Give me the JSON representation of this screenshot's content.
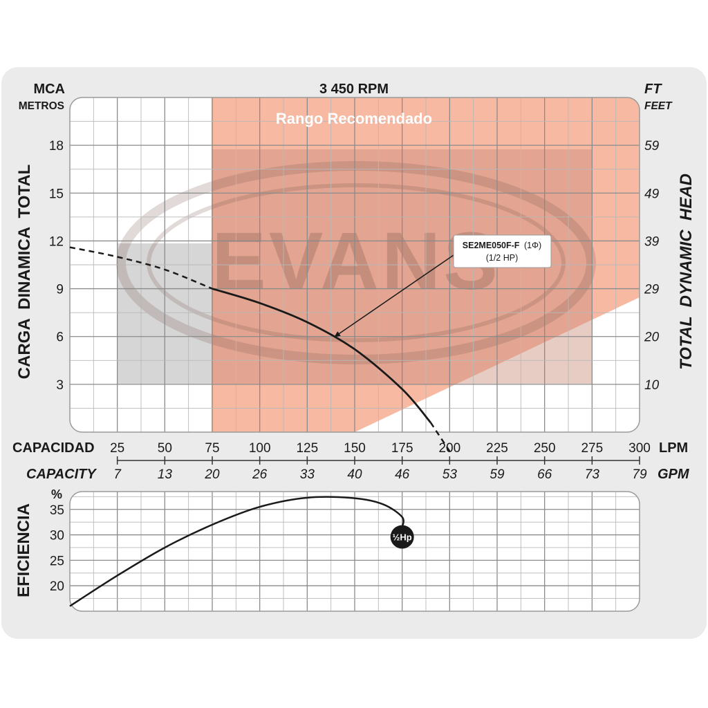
{
  "chart_data": [
    {
      "type": "line",
      "title": "3 450 RPM",
      "y_left_unit": "MCA",
      "y_left_unit_sub": "METROS",
      "y_right_unit": "FT",
      "y_right_unit_sub": "FEET",
      "ylabel_left": "CARGA  DINAMICA  TOTAL",
      "ylabel_right": "TOTAL  DYNAMIC  HEAD",
      "y_left_ticks": [
        "3",
        "6",
        "9",
        "12",
        "15",
        "18"
      ],
      "y_right_ticks": [
        "10",
        "20",
        "29",
        "39",
        "49",
        "59"
      ],
      "ylim": [
        0,
        21
      ],
      "xlim_lpm": [
        0,
        300
      ],
      "x_lpm_ticks": [
        "25",
        "50",
        "75",
        "100",
        "125",
        "150",
        "175",
        "200",
        "225",
        "250",
        "275",
        "300"
      ],
      "x_gpm_ticks": [
        "7",
        "13",
        "20",
        "26",
        "33",
        "40",
        "46",
        "53",
        "59",
        "66",
        "73",
        "79"
      ],
      "xlabel_es": "CAPACIDAD",
      "xlabel_en": "CAPACITY",
      "x_unit_lpm": "LPM",
      "x_unit_gpm": "GPM",
      "recommended_range_label": "Rango Recomendado",
      "recommended_range_lpm": [
        75,
        300
      ],
      "watermark": "EVANS",
      "series": [
        {
          "name": "SE2ME050F-F",
          "phase": "(1Φ)",
          "power": "(1/2 HP)",
          "points_solid": [
            [
              75,
              9.0
            ],
            [
              100,
              8.1
            ],
            [
              125,
              6.9
            ],
            [
              150,
              5.2
            ],
            [
              175,
              2.7
            ],
            [
              190,
              0.6
            ]
          ],
          "points_dashed_start": [
            [
              0,
              11.6
            ],
            [
              25,
              11.0
            ],
            [
              50,
              10.2
            ],
            [
              75,
              9.0
            ]
          ],
          "points_dashed_end": [
            [
              190,
              0.6
            ],
            [
              200,
              -1.2
            ]
          ]
        }
      ]
    },
    {
      "type": "line",
      "ylabel": "EFICIENCIA",
      "y_unit": "%",
      "y_ticks": [
        "20",
        "25",
        "30",
        "35"
      ],
      "ylim": [
        15,
        38.5
      ],
      "xlim_lpm": [
        0,
        300
      ],
      "series": [
        {
          "name": "1/2 Hp",
          "marker_label": "½Hp",
          "points": [
            [
              0,
              16.0
            ],
            [
              25,
              22.0
            ],
            [
              50,
              27.5
            ],
            [
              75,
              32.0
            ],
            [
              100,
              35.5
            ],
            [
              125,
              37.3
            ],
            [
              150,
              37.2
            ],
            [
              165,
              36.0
            ],
            [
              175,
              33.5
            ],
            [
              175,
              31.5
            ]
          ]
        }
      ]
    }
  ]
}
